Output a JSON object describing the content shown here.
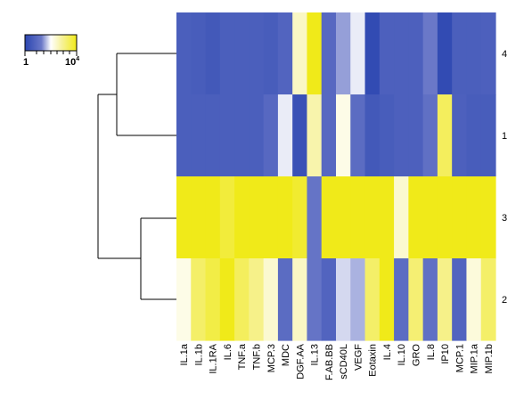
{
  "chart_data": {
    "type": "heatmap",
    "title": "",
    "xlabel": "",
    "ylabel": "",
    "columns": [
      "IL.1a",
      "IL.1b",
      "IL.1RA",
      "IL.6",
      "TNF.a",
      "TNF.b",
      "MCP.3",
      "MDC",
      "PDGF.AA",
      "IL.13",
      "PDGF.AB.BB",
      "sCD40L",
      "VEGF",
      "Eotaxin",
      "IL.4",
      "IL.10",
      "GRO",
      "IL.8",
      "IP10",
      "MCP.1",
      "MIP.1a",
      "MIP.1b"
    ],
    "column_labels_shown": [
      "IL.1a",
      "IL.1b",
      "IL.1RA",
      "IL.6",
      "TNF.a",
      "TNF.b",
      "MCP.3",
      "MDC",
      "DGF.AA",
      "IL.13",
      "F.AB.BB",
      "sCD40L",
      "VEGF",
      "Eotaxin",
      "IL.4",
      "IL.10",
      "GRO",
      "IL.8",
      "IP10",
      "MCP.1",
      "MIP.1a",
      "MIP.1b"
    ],
    "rows": [
      "4",
      "1",
      "3",
      "2"
    ],
    "value_scale": "log10, 0 = 1 to 4 = 10^4",
    "values": [
      [
        0.65,
        0.6,
        0.5,
        0.65,
        0.65,
        0.65,
        0.6,
        0.8,
        2.5,
        4.0,
        0.9,
        1.5,
        1.9,
        0.15,
        0.7,
        0.7,
        0.7,
        1.3,
        0.15,
        0.65,
        0.65,
        0.7
      ],
      [
        0.65,
        0.65,
        0.65,
        0.65,
        0.65,
        0.65,
        0.9,
        1.9,
        0.3,
        2.7,
        0.9,
        2.2,
        1.0,
        0.5,
        0.6,
        0.7,
        0.7,
        1.1,
        3.4,
        0.7,
        0.6,
        0.6
      ],
      [
        4.0,
        4.0,
        4.0,
        3.7,
        4.0,
        4.0,
        4.0,
        4.0,
        3.8,
        1.2,
        4.0,
        4.0,
        4.0,
        4.0,
        4.0,
        2.4,
        4.0,
        4.0,
        4.0,
        4.0,
        4.0,
        4.0
      ],
      [
        2.2,
        3.3,
        3.6,
        4.0,
        3.4,
        3.0,
        2.4,
        1.0,
        2.5,
        1.2,
        0.8,
        1.8,
        1.6,
        3.3,
        4.0,
        1.0,
        3.2,
        1.1,
        3.0,
        0.8,
        2.3,
        3.3
      ]
    ],
    "dendrogram": "rows 4 and 1 cluster; rows 3 and 2 cluster; the two clusters join at the top",
    "colorbar": {
      "min_label": "1",
      "max_label_base": "10",
      "max_label_exp": "4",
      "colors": [
        "#2b45b0",
        "#6a78c8",
        "#ffffff",
        "#f7f2a0",
        "#f0ea19"
      ]
    }
  }
}
